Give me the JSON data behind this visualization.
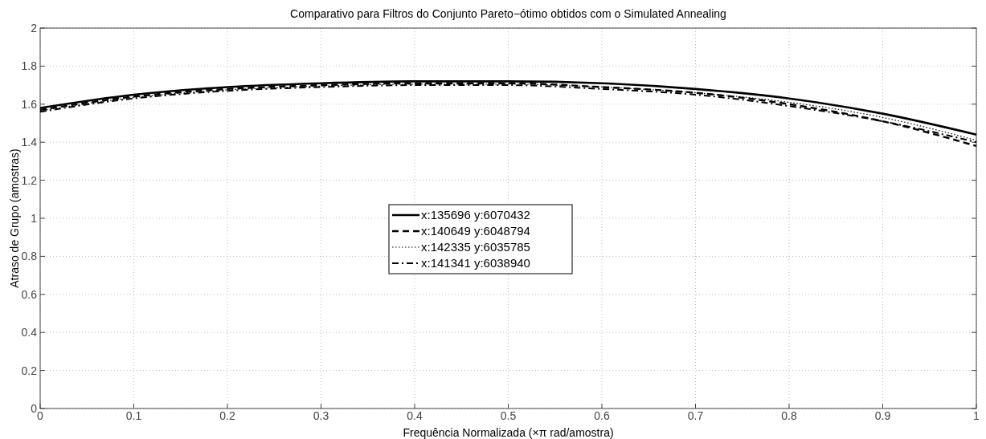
{
  "chart_data": {
    "type": "line",
    "title": "Comparativo para Filtros do Conjunto Pareto−ótimo obtidos com o Simulated Annealing",
    "xlabel": "Frequência Normalizada (×π rad/amostra)",
    "ylabel": "Atraso de Grupo (amostras)",
    "x": [
      0,
      0.1,
      0.2,
      0.3,
      0.4,
      0.5,
      0.6,
      0.7,
      0.8,
      0.9,
      1
    ],
    "series": [
      {
        "name": "x:135696 y:6070432",
        "color": "#000000",
        "line_style": "solid",
        "values": [
          1.58,
          1.65,
          1.69,
          1.71,
          1.72,
          1.72,
          1.71,
          1.68,
          1.63,
          1.55,
          1.44
        ]
      },
      {
        "name": "x:140649 y:6048794",
        "color": "#000000",
        "line_style": "dashed",
        "values": [
          1.57,
          1.64,
          1.68,
          1.7,
          1.71,
          1.71,
          1.69,
          1.66,
          1.6,
          1.51,
          1.38
        ]
      },
      {
        "name": "x:142335 y:6035785",
        "color": "#000000",
        "line_style": "dotted",
        "values": [
          1.565,
          1.635,
          1.675,
          1.695,
          1.705,
          1.705,
          1.69,
          1.66,
          1.61,
          1.53,
          1.41
        ]
      },
      {
        "name": "x:141341 y:6038940",
        "color": "#000000",
        "line_style": "dashdot",
        "values": [
          1.56,
          1.63,
          1.67,
          1.69,
          1.7,
          1.7,
          1.68,
          1.65,
          1.59,
          1.51,
          1.4
        ]
      }
    ],
    "xlim": [
      0,
      1
    ],
    "ylim": [
      0,
      2
    ],
    "xticks": [
      0,
      0.1,
      0.2,
      0.3,
      0.4,
      0.5,
      0.6,
      0.7,
      0.8,
      0.9,
      1
    ],
    "yticks": [
      0,
      0.2,
      0.4,
      0.6,
      0.8,
      1,
      1.2,
      1.4,
      1.6,
      1.8,
      2
    ],
    "grid": true,
    "legend": "center"
  }
}
